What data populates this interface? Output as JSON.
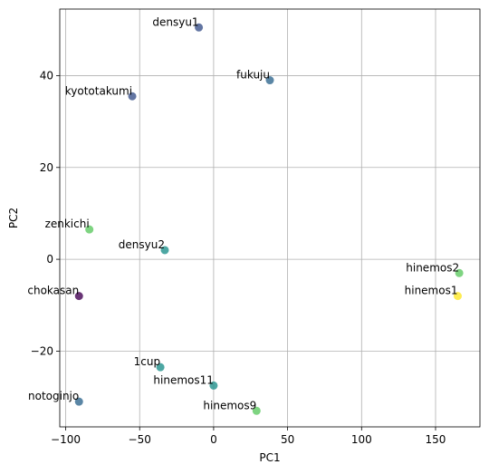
{
  "chart_data": {
    "type": "scatter",
    "xlabel": "PC1",
    "ylabel": "PC2",
    "xlim": [
      -104,
      180
    ],
    "ylim": [
      -36.5,
      54.5
    ],
    "xticks": [
      -100,
      -50,
      0,
      50,
      100,
      150
    ],
    "yticks": [
      -20,
      0,
      20,
      40
    ],
    "xtick_labels": [
      "−100",
      "−50",
      "0",
      "50",
      "100",
      "150"
    ],
    "ytick_labels": [
      "−20",
      "0",
      "20",
      "40"
    ],
    "grid": true,
    "points": [
      {
        "label": "densyu1",
        "x": -10,
        "y": 50.5,
        "color": "#3b528b"
      },
      {
        "label": "fukuju",
        "x": 38,
        "y": 39,
        "color": "#31688e"
      },
      {
        "label": "kyototakumi",
        "x": -55,
        "y": 35.5,
        "color": "#3b528b"
      },
      {
        "label": "zenkichi",
        "x": -84,
        "y": 6.5,
        "color": "#5ec962"
      },
      {
        "label": "densyu2",
        "x": -33,
        "y": 2,
        "color": "#21918c"
      },
      {
        "label": "hinemos2",
        "x": 166,
        "y": -3,
        "color": "#5ec962"
      },
      {
        "label": "hinemos1",
        "x": 165,
        "y": -8,
        "color": "#fde725"
      },
      {
        "label": "chokasan",
        "x": -91,
        "y": -8,
        "color": "#440154"
      },
      {
        "label": "1cup",
        "x": -36,
        "y": -23.5,
        "color": "#21918c"
      },
      {
        "label": "hinemos11",
        "x": 0,
        "y": -27.5,
        "color": "#21918c"
      },
      {
        "label": "notoginjo",
        "x": -91,
        "y": -31,
        "color": "#31688e"
      },
      {
        "label": "hinemos9",
        "x": 29,
        "y": -33,
        "color": "#5ec962"
      }
    ]
  }
}
